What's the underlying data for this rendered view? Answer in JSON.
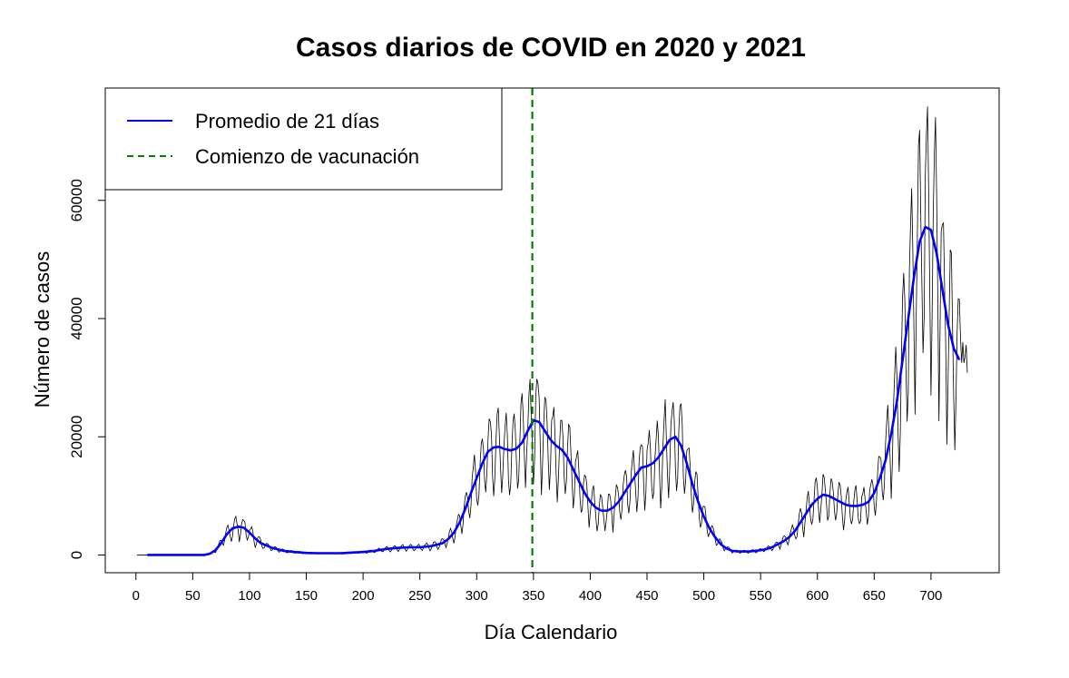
{
  "chart_data": {
    "type": "line",
    "title": "Casos diarios de COVID en 2020 y 2021",
    "xlabel": "Día Calendario",
    "ylabel": "Número de casos",
    "xlim": [
      -27,
      760
    ],
    "ylim": [
      -3000,
      79000
    ],
    "x_ticks": [
      0,
      50,
      100,
      150,
      200,
      250,
      300,
      350,
      400,
      450,
      500,
      550,
      600,
      650,
      700
    ],
    "x_tick_labels": [
      "0",
      "50",
      "100",
      "150",
      "200",
      "250",
      "300",
      "350",
      "400",
      "450",
      "500",
      "550",
      "600",
      "650",
      "700"
    ],
    "y_ticks": [
      0,
      20000,
      40000,
      60000
    ],
    "y_tick_labels": [
      "0",
      "20000",
      "40000",
      "60000"
    ],
    "grid": false,
    "legend": {
      "position": "top-left",
      "entries": [
        {
          "label": "Promedio de 21 días",
          "color": "#0000ff",
          "style": "solid"
        },
        {
          "label": "Comienzo de vacunación",
          "color": "#008000",
          "style": "dashed"
        }
      ]
    },
    "vline": {
      "x": 349,
      "color": "#008000",
      "style": "dashed"
    },
    "series": [
      {
        "name": "Promedio de 21 días",
        "color": "#0000ff",
        "x": [
          10,
          20,
          40,
          60,
          65,
          70,
          75,
          80,
          85,
          90,
          95,
          100,
          105,
          110,
          120,
          130,
          140,
          150,
          160,
          170,
          180,
          190,
          200,
          210,
          220,
          230,
          240,
          250,
          260,
          270,
          275,
          280,
          285,
          290,
          295,
          300,
          305,
          310,
          315,
          320,
          325,
          330,
          335,
          340,
          345,
          350,
          355,
          360,
          365,
          370,
          375,
          380,
          385,
          390,
          395,
          400,
          405,
          410,
          415,
          420,
          425,
          430,
          435,
          440,
          445,
          450,
          455,
          460,
          465,
          470,
          475,
          480,
          485,
          490,
          495,
          500,
          505,
          510,
          515,
          520,
          525,
          530,
          535,
          540,
          545,
          550,
          555,
          560,
          565,
          570,
          575,
          580,
          585,
          590,
          595,
          600,
          605,
          610,
          615,
          620,
          625,
          630,
          635,
          640,
          645,
          650,
          655,
          660,
          665,
          670,
          675,
          680,
          685,
          690,
          695,
          700,
          705,
          710,
          715,
          720,
          725
        ],
        "y": [
          0,
          0,
          0,
          0,
          200,
          800,
          2000,
          3500,
          4500,
          4800,
          4600,
          3800,
          2800,
          2000,
          1200,
          700,
          500,
          350,
          300,
          300,
          300,
          400,
          500,
          700,
          1000,
          1200,
          1300,
          1300,
          1500,
          2000,
          2700,
          3800,
          5500,
          7800,
          10500,
          13000,
          15500,
          17500,
          18200,
          18300,
          17900,
          17700,
          18000,
          19000,
          21000,
          22800,
          22500,
          21000,
          19500,
          18500,
          17800,
          16500,
          14500,
          12500,
          10500,
          9000,
          8000,
          7500,
          7500,
          8000,
          9000,
          10500,
          12000,
          13500,
          14800,
          15000,
          15500,
          16500,
          18000,
          19500,
          20000,
          18500,
          15500,
          12000,
          9000,
          6500,
          4500,
          3000,
          1800,
          1100,
          700,
          600,
          600,
          600,
          700,
          800,
          1000,
          1300,
          1800,
          2300,
          3000,
          4000,
          5500,
          7000,
          8500,
          9500,
          10200,
          10000,
          9500,
          9000,
          8500,
          8300,
          8300,
          8500,
          9000,
          10500,
          13000,
          16000,
          20500,
          26000,
          33000,
          40000,
          47000,
          53000,
          55500,
          55000,
          51000,
          45000,
          39000,
          35000,
          33000
        ]
      }
    ]
  }
}
